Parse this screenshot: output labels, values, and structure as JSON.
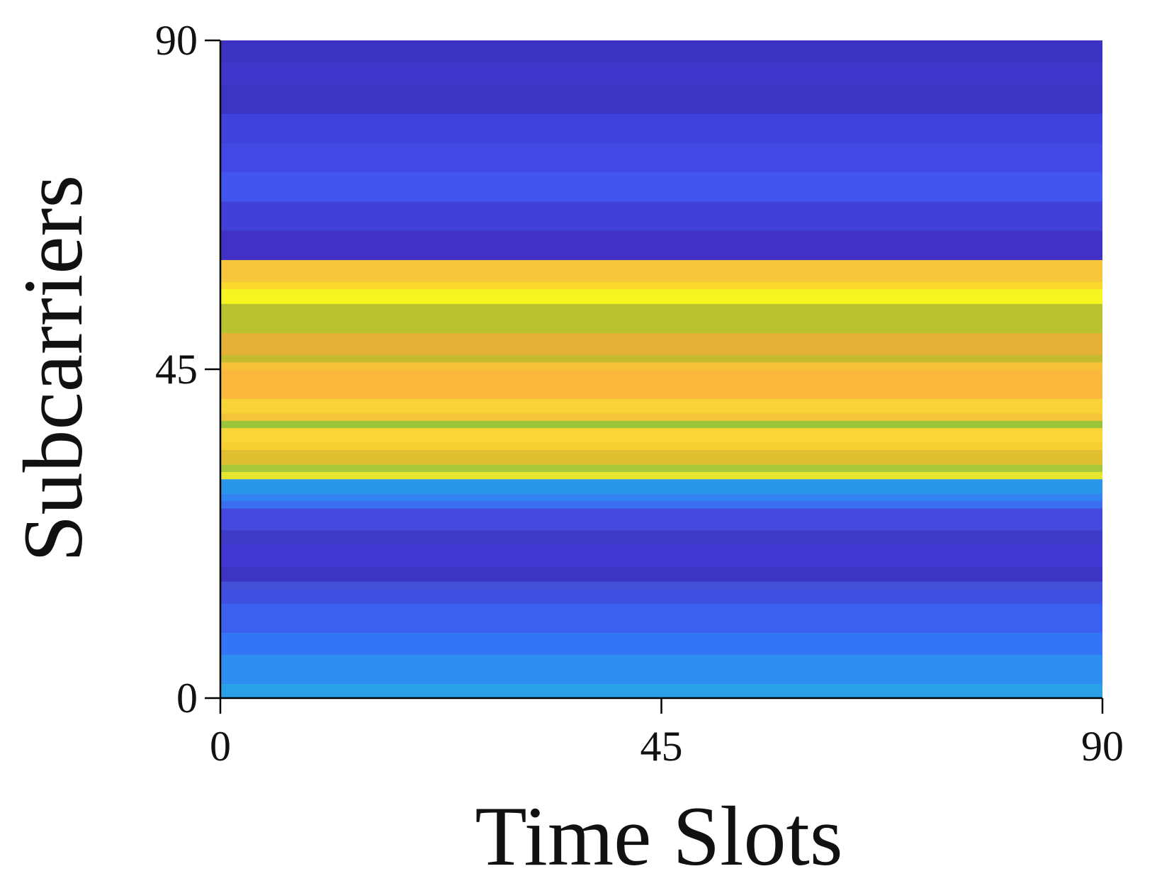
{
  "chart_data": {
    "type": "heatmap",
    "title": "",
    "xlabel": "Time Slots",
    "ylabel": "Subcarriers",
    "xlim": [
      0,
      90
    ],
    "ylim": [
      0,
      90
    ],
    "x_ticks": [
      0,
      45,
      90
    ],
    "y_ticks": [
      0,
      45,
      90
    ],
    "x_tick_labels": [
      "0",
      "45",
      "90"
    ],
    "y_tick_labels": [
      "0",
      "45",
      "90"
    ],
    "grid": false,
    "colormap": "parula",
    "bands": [
      {
        "y_start": 0,
        "y_end": 2,
        "color": "#2aa0e8"
      },
      {
        "y_start": 2,
        "y_end": 6,
        "color": "#2e8ef0"
      },
      {
        "y_start": 6,
        "y_end": 9,
        "color": "#3375f5"
      },
      {
        "y_start": 9,
        "y_end": 13,
        "color": "#3b60f0"
      },
      {
        "y_start": 13,
        "y_end": 15,
        "color": "#3f4fe0"
      },
      {
        "y_start": 15,
        "y_end": 16,
        "color": "#4550d8"
      },
      {
        "y_start": 16,
        "y_end": 18,
        "color": "#3d34c4"
      },
      {
        "y_start": 18,
        "y_end": 21,
        "color": "#4237d2"
      },
      {
        "y_start": 21,
        "y_end": 23,
        "color": "#3d3ac8"
      },
      {
        "y_start": 23,
        "y_end": 26,
        "color": "#4548dc"
      },
      {
        "y_start": 26,
        "y_end": 27,
        "color": "#3b6ef0"
      },
      {
        "y_start": 27,
        "y_end": 28,
        "color": "#3382f2"
      },
      {
        "y_start": 28,
        "y_end": 30,
        "color": "#2a96ea"
      },
      {
        "y_start": 30,
        "y_end": 31,
        "color": "#e6e630"
      },
      {
        "y_start": 31,
        "y_end": 32,
        "color": "#a8c83a"
      },
      {
        "y_start": 32,
        "y_end": 34,
        "color": "#e0c030"
      },
      {
        "y_start": 34,
        "y_end": 35,
        "color": "#f6cf30"
      },
      {
        "y_start": 35,
        "y_end": 37,
        "color": "#f9d535"
      },
      {
        "y_start": 37,
        "y_end": 38,
        "color": "#9ac43a"
      },
      {
        "y_start": 38,
        "y_end": 39,
        "color": "#f4c43a"
      },
      {
        "y_start": 39,
        "y_end": 41,
        "color": "#f8d338"
      },
      {
        "y_start": 41,
        "y_end": 45,
        "color": "#fab83c"
      },
      {
        "y_start": 45,
        "y_end": 46,
        "color": "#f7c238"
      },
      {
        "y_start": 46,
        "y_end": 47,
        "color": "#c4bc30"
      },
      {
        "y_start": 47,
        "y_end": 50,
        "color": "#e5b036"
      },
      {
        "y_start": 50,
        "y_end": 54,
        "color": "#b9c330"
      },
      {
        "y_start": 54,
        "y_end": 56,
        "color": "#f5f520"
      },
      {
        "y_start": 56,
        "y_end": 57,
        "color": "#fbd92c"
      },
      {
        "y_start": 57,
        "y_end": 60,
        "color": "#f7c63c"
      },
      {
        "y_start": 60,
        "y_end": 64,
        "color": "#4131c4"
      },
      {
        "y_start": 64,
        "y_end": 68,
        "color": "#4340d8"
      },
      {
        "y_start": 68,
        "y_end": 72,
        "color": "#4255ec"
      },
      {
        "y_start": 72,
        "y_end": 76,
        "color": "#4248e4"
      },
      {
        "y_start": 76,
        "y_end": 80,
        "color": "#3f42dc"
      },
      {
        "y_start": 80,
        "y_end": 84,
        "color": "#3c35c4"
      },
      {
        "y_start": 84,
        "y_end": 87,
        "color": "#4036cc"
      },
      {
        "y_start": 87,
        "y_end": 90,
        "color": "#3d33c2"
      }
    ]
  }
}
